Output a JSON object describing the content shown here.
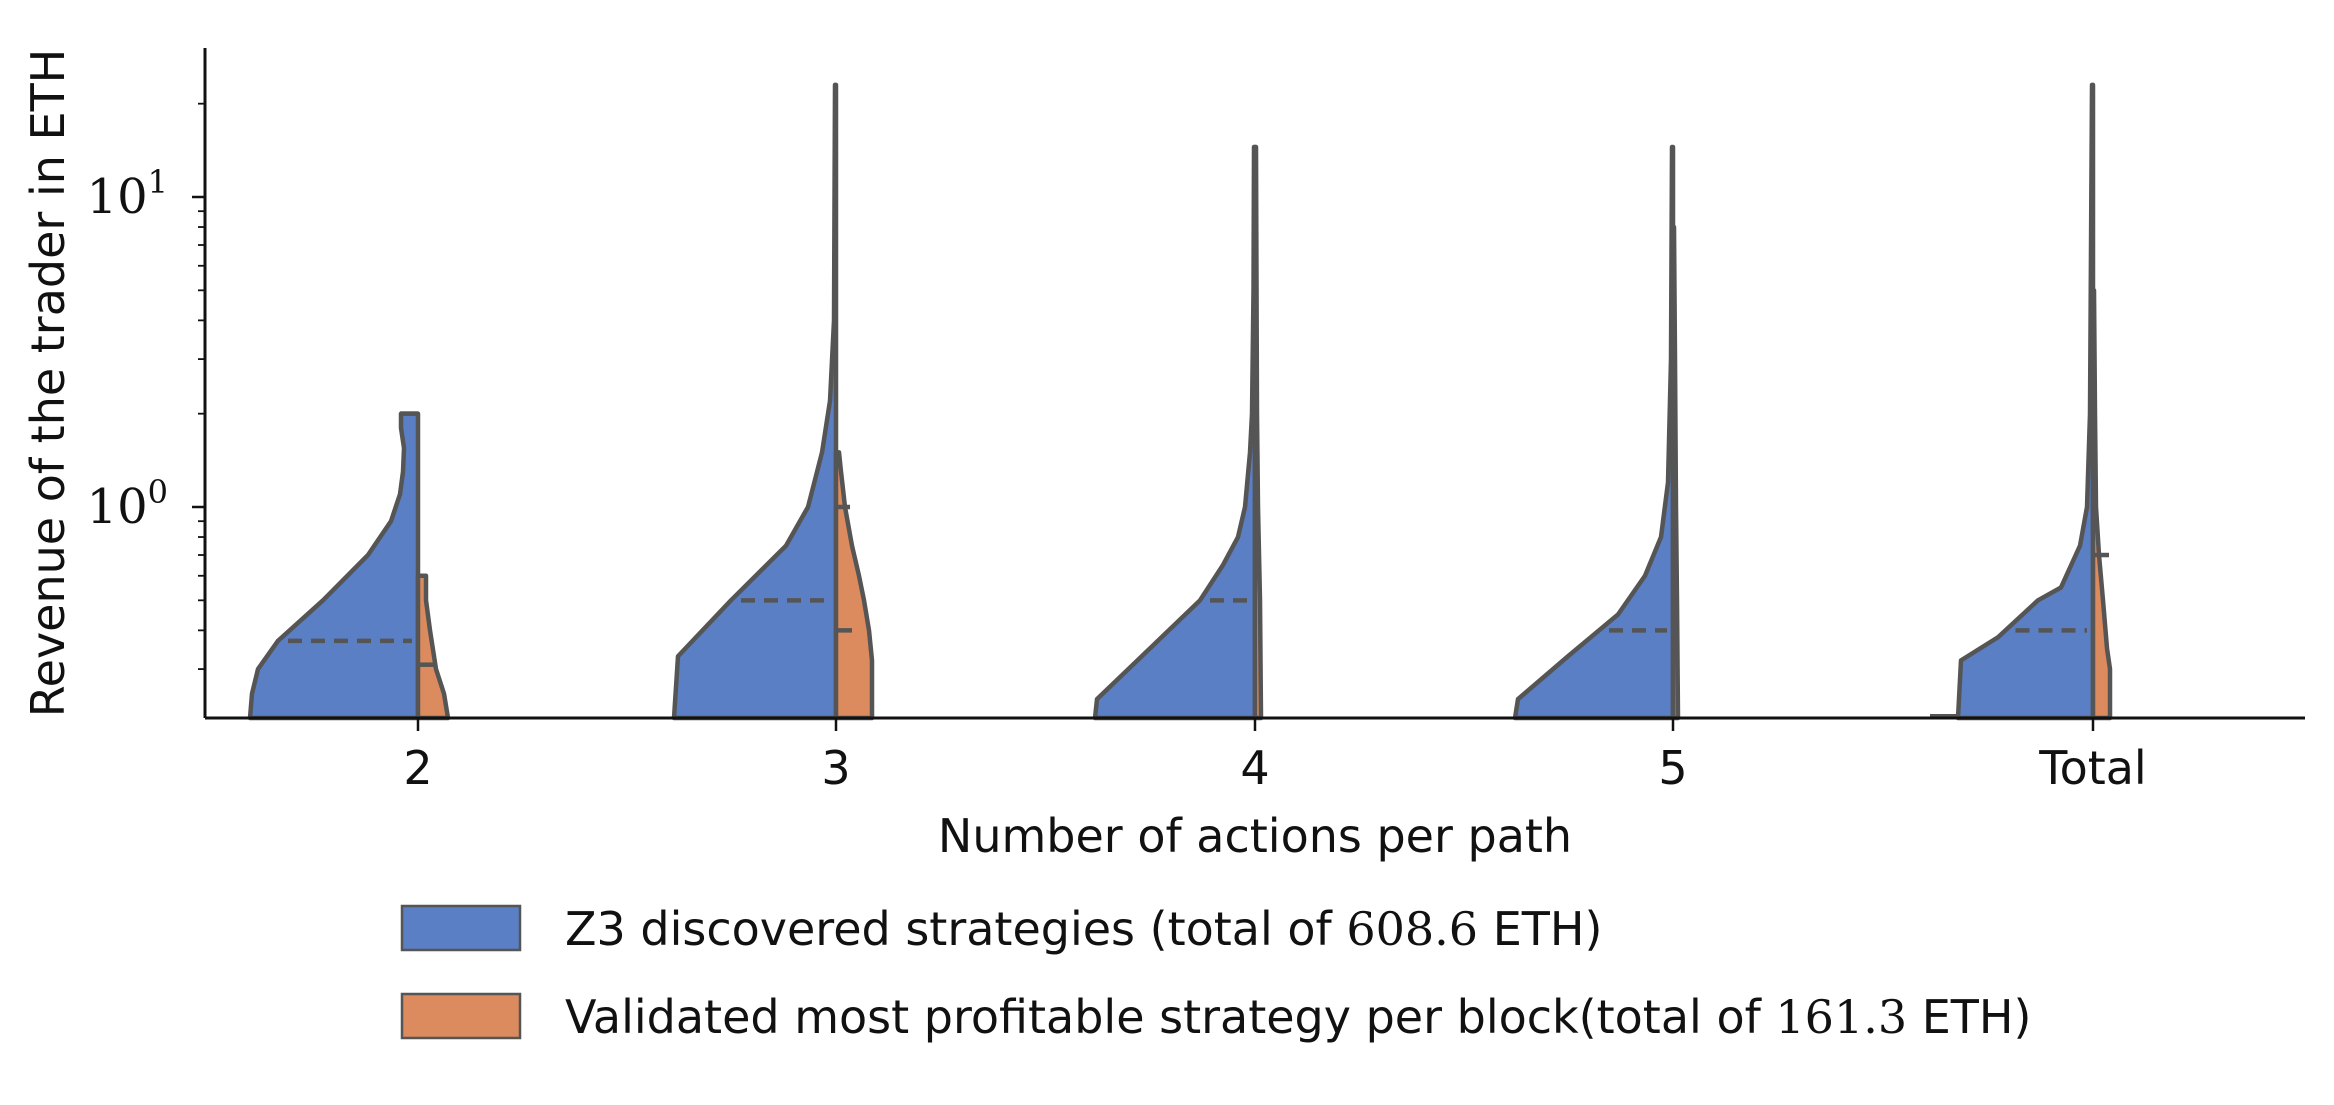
{
  "chart_data": {
    "type": "violin",
    "split": true,
    "xlabel": "Number of actions per path",
    "ylabel": "Revenue of the trader in ETH",
    "yscale": "log",
    "ylim": [
      0.2,
      30
    ],
    "yticks": [
      {
        "value": 1,
        "base": "10",
        "exp": "0"
      },
      {
        "value": 10,
        "base": "10",
        "exp": "1"
      }
    ],
    "categories": [
      "2",
      "3",
      "4",
      "5",
      "Total"
    ],
    "grid": false,
    "legend_position": "bottom",
    "series": [
      {
        "name": "Z3 discovered strategies (total of",
        "total": "608.6",
        "unit": "ETH)",
        "color": "#5a7fc4",
        "side": "left",
        "median": [
          0.37,
          0.5,
          0.5,
          0.4,
          0.4
        ],
        "max": [
          2.0,
          23.0,
          14.5,
          14.5,
          23.0
        ]
      },
      {
        "name": "Validated most profitable strategy per block(total of",
        "total": "161.3",
        "unit": "ETH)",
        "color": "#dc8b5e",
        "side": "right",
        "median": [
          0.31,
          0.4,
          null,
          null,
          0.7
        ],
        "max": [
          0.6,
          1.5,
          null,
          null,
          0.7
        ]
      }
    ],
    "outline_color": "#555555"
  }
}
